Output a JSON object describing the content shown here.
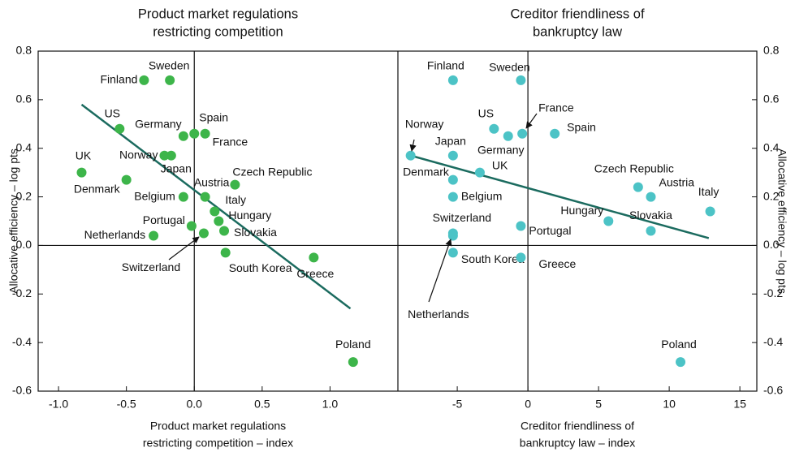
{
  "chart_data": [
    {
      "type": "scatter",
      "title": [
        "Product market regulations",
        "restricting competition"
      ],
      "xlabel": [
        "Product market regulations",
        "restricting competition – index"
      ],
      "ylabel": "Allocative efficiency – log pts",
      "xlim": [
        -1.15,
        1.5
      ],
      "ylim": [
        -0.6,
        0.8
      ],
      "xticks": [
        {
          "value": -1,
          "label": "-1.0"
        },
        -0.5,
        {
          "value": 0,
          "label": "0.0"
        },
        0.5,
        {
          "value": 1,
          "label": "1.0"
        }
      ],
      "yticks": [
        0.8,
        0.6,
        0.4,
        0.2,
        {
          "value": 0,
          "label": "0.0"
        },
        -0.2,
        -0.4,
        -0.6
      ],
      "color": "#3db54a",
      "trend_color": "#1b6b5f",
      "labels": [
        "UK",
        "Denmark",
        "US",
        "Finland",
        "Sweden",
        "Germany",
        "Spain",
        "France",
        "Norway",
        "Japan",
        "Belgium",
        "Austria",
        "Czech Republic",
        "Italy",
        "Hungary",
        "Slovakia",
        "Portugal",
        "Switzerland",
        "Netherlands",
        "South Korea",
        "Greece",
        "Poland"
      ],
      "x": [
        -0.83,
        -0.5,
        -0.55,
        -0.37,
        -0.18,
        -0.08,
        0.0,
        0.08,
        -0.22,
        -0.17,
        -0.08,
        0.08,
        0.3,
        0.15,
        0.18,
        0.22,
        -0.02,
        0.07,
        -0.3,
        0.23,
        0.88,
        1.17
      ],
      "y": [
        0.3,
        0.27,
        0.48,
        0.68,
        0.68,
        0.45,
        0.46,
        0.46,
        0.37,
        0.37,
        0.2,
        0.2,
        0.25,
        0.14,
        0.1,
        0.06,
        0.08,
        0.05,
        0.04,
        -0.03,
        -0.05,
        -0.48
      ],
      "trendline": {
        "x": [
          -0.83,
          1.15
        ],
        "y": [
          0.58,
          -0.26
        ]
      }
    },
    {
      "type": "scatter",
      "title": [
        "Creditor friendliness of",
        "bankruptcy law"
      ],
      "xlabel": [
        "Creditor friendliness of",
        "bankruptcy law – index"
      ],
      "ylabel": "Allocative efficiency – log pts",
      "xlim": [
        -9.2,
        16.2
      ],
      "ylim": [
        -0.6,
        0.8
      ],
      "xticks": [
        -5,
        0,
        5,
        10,
        15
      ],
      "yticks": [
        0.8,
        0.6,
        0.4,
        0.2,
        {
          "value": 0,
          "label": "0.0"
        },
        -0.2,
        -0.4,
        -0.6
      ],
      "color": "#4cc3c6",
      "trend_color": "#1b6b5f",
      "labels": [
        "Finland",
        "Sweden",
        "US",
        "France",
        "Germany",
        "Spain",
        "Norway",
        "Japan",
        "Denmark",
        "UK",
        "Belgium",
        "Czech Republic",
        "Austria",
        "Italy",
        "Hungary",
        "Slovakia",
        "Portugal",
        "Switzerland",
        "Netherlands",
        "South Korea",
        "Greece",
        "Poland"
      ],
      "x": [
        -5.3,
        -0.5,
        -2.4,
        -0.4,
        -1.4,
        1.9,
        -8.3,
        -5.3,
        -5.3,
        -3.4,
        -5.3,
        7.8,
        8.7,
        12.9,
        5.7,
        8.7,
        -0.5,
        -5.3,
        -5.3,
        -5.3,
        -0.5,
        10.8
      ],
      "y": [
        0.68,
        0.68,
        0.48,
        0.46,
        0.45,
        0.46,
        0.37,
        0.37,
        0.27,
        0.3,
        0.2,
        0.24,
        0.2,
        0.14,
        0.1,
        0.06,
        0.08,
        0.05,
        0.04,
        -0.03,
        -0.05,
        -0.48
      ],
      "trendline": {
        "x": [
          -8.3,
          12.8
        ],
        "y": [
          0.37,
          0.03
        ]
      }
    }
  ]
}
